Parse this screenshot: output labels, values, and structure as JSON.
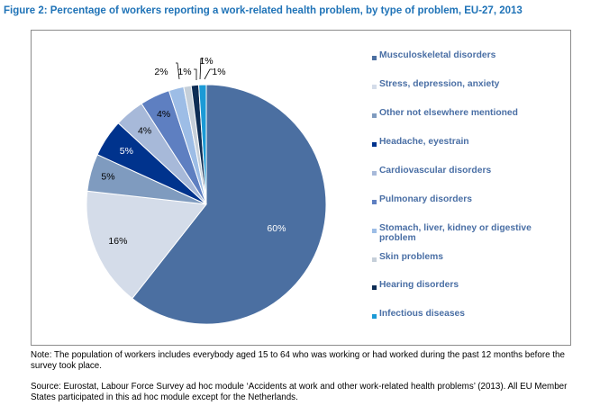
{
  "figure": {
    "title": "Figure 2: Percentage of workers reporting a work-related health problem, by type of problem, EU-27, 2013",
    "note": "Note: The population of workers includes everybody aged 15 to 64 who was working or had worked during the past 12 months before the survey took place.",
    "source": "Source: Eurostat, Labour Force Survey ad hoc module ‘Accidents at work and other work-related health problems’ (2013). All EU Member States participated in this ad hoc module except for the Netherlands."
  },
  "chart_data": {
    "type": "pie",
    "title": "Figure 2: Percentage of workers reporting a work-related health problem, by type of problem, EU-27, 2013",
    "legend_position": "right",
    "slices": [
      {
        "label": "Musculoskeletal disorders",
        "value": 60,
        "data_label": "60%",
        "color": "#4b6fa1"
      },
      {
        "label": "Stress, depression, anxiety",
        "value": 16,
        "data_label": "16%",
        "color": "#d4dce9"
      },
      {
        "label": "Other not elsewhere mentioned",
        "value": 5,
        "data_label": "5%",
        "color": "#7f9bbf"
      },
      {
        "label": "Headache, eyestrain",
        "value": 5,
        "data_label": "5%",
        "color": "#00338d"
      },
      {
        "label": "Cardiovascular disorders",
        "value": 4,
        "data_label": "4%",
        "color": "#a7b9d9"
      },
      {
        "label": "Pulmonary disorders",
        "value": 4,
        "data_label": "4%",
        "color": "#5e7fc1"
      },
      {
        "label": "Stomach, liver, kidney or digestive problem",
        "value": 2,
        "data_label": "2%",
        "color": "#9dbde6"
      },
      {
        "label": "Skin problems",
        "value": 1,
        "data_label": "1%",
        "color": "#c5cfd9"
      },
      {
        "label": "Hearing disorders",
        "value": 1,
        "data_label": "1%",
        "color": "#0d2d55"
      },
      {
        "label": "Infectious diseases",
        "value": 1,
        "data_label": "1%",
        "color": "#1b9ad6"
      }
    ]
  }
}
